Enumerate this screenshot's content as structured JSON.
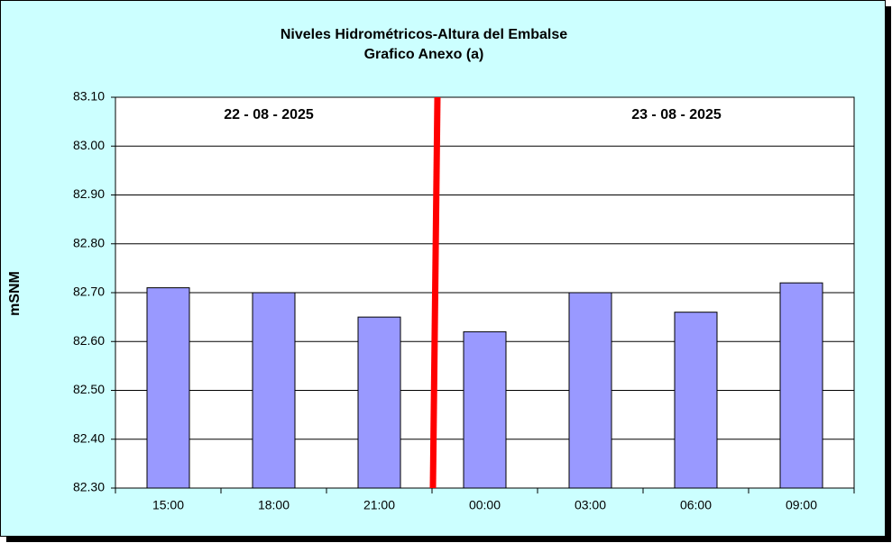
{
  "chart_data": {
    "type": "bar",
    "title": "Niveles Hidrométricos-Altura del Embalse",
    "subtitle": "Grafico Anexo (a)",
    "y_label": "mSNM",
    "annotations": [
      "22 - 08 - 2025",
      "23 - 08 - 2025"
    ],
    "categories": [
      "15:00",
      "18:00",
      "21:00",
      "00:00",
      "03:00",
      "06:00",
      "09:00"
    ],
    "values": [
      82.71,
      82.7,
      82.65,
      82.62,
      82.7,
      82.66,
      82.72
    ],
    "color": "#9999ff",
    "ylim": [
      82.3,
      83.1
    ],
    "yticks": [
      {
        "value": 82.3,
        "label": "82.30"
      },
      {
        "value": 82.4,
        "label": "82.40"
      },
      {
        "value": 82.5,
        "label": "82.50"
      },
      {
        "value": 82.6,
        "label": "82.60"
      },
      {
        "value": 82.7,
        "label": "82.70"
      },
      {
        "value": 82.8,
        "label": "82.80"
      },
      {
        "value": 82.9,
        "label": "82.90"
      },
      {
        "value": 83.0,
        "label": "83.00"
      },
      {
        "value": 83.1,
        "label": "83.10"
      }
    ],
    "grid": true
  }
}
